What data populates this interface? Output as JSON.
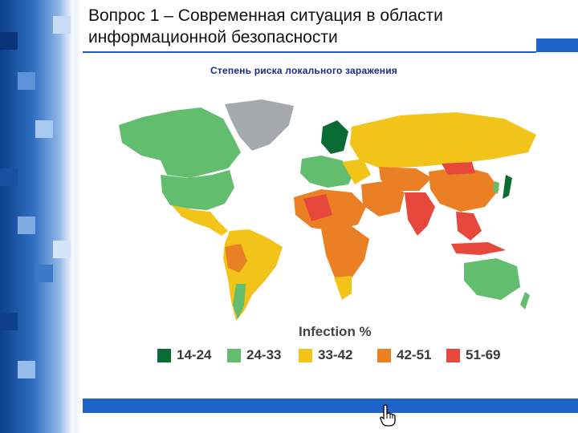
{
  "slide": {
    "title": "Вопрос 1 – Современная ситуация в области информационной безопасности",
    "subtitle": "Степень риска локального заражения"
  },
  "map": {
    "legend_title": "Infection %",
    "legend": [
      {
        "label": "14-24",
        "color": "#0b6b35"
      },
      {
        "label": "24-33",
        "color": "#62bd6e"
      },
      {
        "label": "33-42",
        "color": "#f2c318"
      },
      {
        "label": "42-51",
        "color": "#ea8023"
      },
      {
        "label": "51-69",
        "color": "#e8473b"
      }
    ],
    "no_data_color": "#a4a9ad"
  },
  "icons": {
    "cursor": "hand-pointer-icon"
  }
}
